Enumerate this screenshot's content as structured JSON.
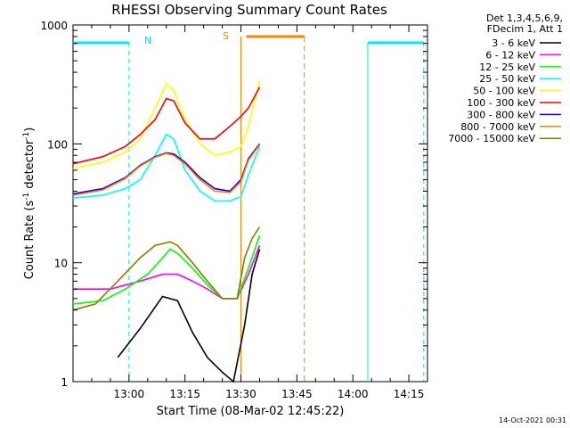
{
  "chart_data": {
    "type": "line",
    "title": "RHESSI Observing Summary Count Rates",
    "xlabel": "Start Time (08-Mar-02 12:45:22)",
    "ylabel_main": "Count Rate (s",
    "ylabel_sup1": "-1",
    "ylabel_mid": " detector",
    "ylabel_sup2": "-1",
    "ylabel_end": ")",
    "y_scale": "log",
    "ylim": [
      1,
      1000
    ],
    "xlim_minutes_after_1245": [
      0,
      95
    ],
    "x_ticks": [
      {
        "label": "13:00",
        "min": 15
      },
      {
        "label": "13:15",
        "min": 30
      },
      {
        "label": "13:30",
        "min": 45
      },
      {
        "label": "13:45",
        "min": 60
      },
      {
        "label": "14:00",
        "min": 75
      },
      {
        "label": "14:15",
        "min": 90
      }
    ],
    "y_ticks": [
      {
        "label": "1",
        "value": 1
      },
      {
        "label": "10",
        "value": 10
      },
      {
        "label": "100",
        "value": 100
      },
      {
        "label": "1000",
        "value": 1000
      }
    ],
    "legend_header": [
      "Det 1,3,4,5,6,9,",
      "FDecim 1, Att 1"
    ],
    "timestamp": "14-Oct-2021 00:31",
    "annotations": {
      "night_label": "N",
      "saa_label": "S",
      "night_intervals": [
        [
          0,
          15
        ],
        [
          79,
          94
        ]
      ],
      "saa_interval": [
        45,
        62
      ]
    },
    "series": [
      {
        "name": "3 - 6 keV",
        "color": "#000000",
        "t": [
          12,
          18,
          24,
          28,
          32,
          36,
          40,
          43,
          46,
          48,
          50
        ],
        "y": [
          1.6,
          2.8,
          5.2,
          4.8,
          2.6,
          1.6,
          1.2,
          1.0,
          3.0,
          8.0,
          13
        ]
      },
      {
        "name": "6 - 12 keV",
        "color": "#ff00ff",
        "t": [
          0,
          10,
          18,
          24,
          28,
          32,
          36,
          40,
          44,
          47,
          50
        ],
        "y": [
          6,
          6,
          7,
          8,
          8,
          7,
          6,
          5,
          5,
          8,
          14
        ]
      },
      {
        "name": "12 - 25 keV",
        "color": "#00ff00",
        "t": [
          0,
          8,
          14,
          20,
          24,
          26,
          28,
          32,
          36,
          40,
          44,
          47,
          50
        ],
        "y": [
          4.5,
          4.8,
          6,
          8,
          11,
          13,
          12,
          9,
          6.5,
          5,
          5,
          9,
          17
        ]
      },
      {
        "name": "25 - 50 keV",
        "color": "#00ffff",
        "t": [
          0,
          8,
          14,
          18,
          22,
          25,
          27,
          30,
          34,
          38,
          42,
          45,
          47,
          50
        ],
        "y": [
          35,
          37,
          42,
          50,
          80,
          120,
          110,
          60,
          40,
          33,
          33,
          36,
          55,
          95
        ]
      },
      {
        "name": "50 - 100 keV",
        "color": "#ffff00",
        "t": [
          0,
          8,
          14,
          18,
          22,
          25,
          27,
          30,
          34,
          38,
          42,
          45,
          47,
          50
        ],
        "y": [
          62,
          70,
          85,
          110,
          200,
          320,
          280,
          160,
          100,
          80,
          85,
          95,
          140,
          340
        ]
      },
      {
        "name": "100 - 300 keV",
        "color": "#ff0000",
        "t": [
          0,
          8,
          14,
          18,
          22,
          25,
          27,
          30,
          34,
          38,
          42,
          45,
          47,
          50
        ],
        "y": [
          68,
          78,
          95,
          120,
          160,
          240,
          230,
          150,
          110,
          110,
          140,
          170,
          200,
          300
        ]
      },
      {
        "name": "300 - 800 keV",
        "color": "#0000ff",
        "t": [
          0,
          8,
          14,
          18,
          22,
          25,
          27,
          30,
          34,
          38,
          42,
          45,
          47,
          50
        ],
        "y": [
          38,
          42,
          52,
          66,
          78,
          84,
          82,
          70,
          52,
          42,
          40,
          50,
          75,
          100
        ]
      },
      {
        "name": "800 - 7000 keV",
        "color": "#ff8000",
        "t": [
          0,
          8,
          14,
          18,
          22,
          25,
          27,
          30,
          34,
          38,
          42,
          45,
          47,
          50
        ],
        "y": [
          37,
          41,
          51,
          65,
          77,
          83,
          80,
          68,
          50,
          40,
          39,
          48,
          73,
          98
        ]
      },
      {
        "name": "7000 - 15000 keV",
        "color": "#808000",
        "t": [
          0,
          6,
          12,
          18,
          22,
          26,
          28,
          32,
          36,
          40,
          44,
          46,
          48,
          50
        ],
        "y": [
          4.0,
          4.5,
          7,
          11,
          14,
          15,
          14,
          10,
          7,
          5,
          5,
          11,
          16,
          20
        ]
      }
    ]
  }
}
